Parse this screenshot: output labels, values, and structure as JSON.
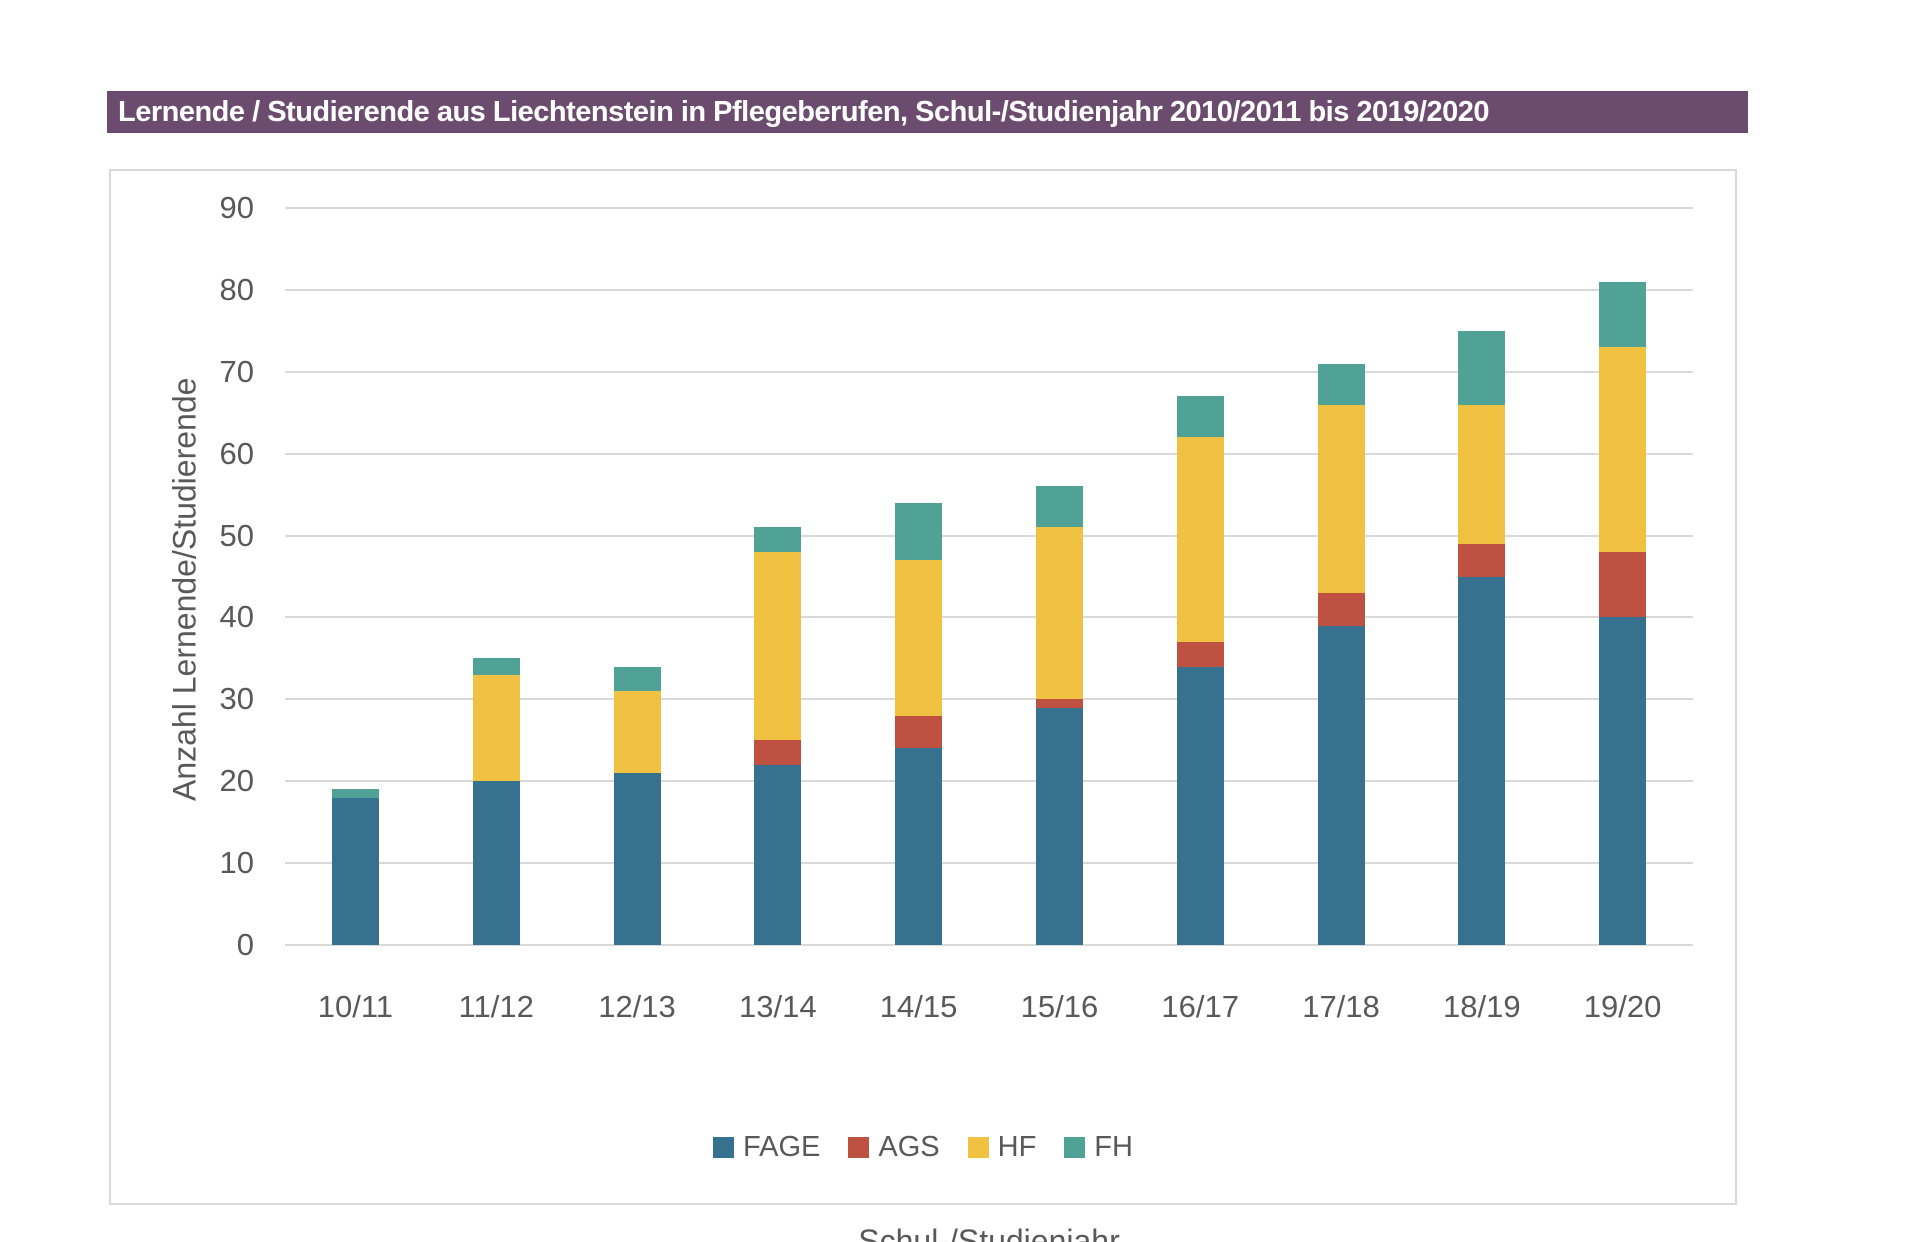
{
  "title": {
    "text": "Lernende / Studierende aus Liechtenstein in Pflegeberufen, Schul-/Studienjahr 2010/2011 bis 2019/2020",
    "bg_color": "#6B4C6E",
    "text_color": "#FFFFFF"
  },
  "colors": {
    "gridline": "#D9D9D9",
    "chart_border": "#D9D9D9",
    "axis_text": "#595959"
  },
  "chart_data": {
    "type": "bar",
    "stacked": true,
    "title": "Lernende / Studierende aus Liechtenstein in Pflegeberufen, Schul-/Studienjahr 2010/2011 bis 2019/2020",
    "categories": [
      "10/11",
      "11/12",
      "12/13",
      "13/14",
      "14/15",
      "15/16",
      "16/17",
      "17/18",
      "18/19",
      "19/20"
    ],
    "series": [
      {
        "name": "FAGE",
        "color": "#36718F",
        "values": [
          18,
          20,
          21,
          22,
          24,
          29,
          34,
          39,
          45,
          40
        ]
      },
      {
        "name": "AGS",
        "color": "#BE5142",
        "values": [
          0,
          0,
          0,
          3,
          4,
          1,
          3,
          4,
          4,
          8
        ]
      },
      {
        "name": "HF",
        "color": "#F1C242",
        "values": [
          0,
          13,
          10,
          23,
          19,
          21,
          25,
          23,
          17,
          25
        ]
      },
      {
        "name": "FH",
        "color": "#4FA295",
        "values": [
          1,
          2,
          3,
          3,
          7,
          5,
          5,
          5,
          9,
          8
        ]
      }
    ],
    "totals": [
      19,
      35,
      34,
      51,
      54,
      56,
      67,
      71,
      75,
      81
    ],
    "xlabel": "Schul-/Studienjahr",
    "ylabel": "Anzahl Lernende/Studierende",
    "ylim": [
      0,
      90
    ],
    "ytick_step": 10,
    "y_ticks": [
      0,
      10,
      20,
      30,
      40,
      50,
      60,
      70,
      80,
      90
    ],
    "grid": true,
    "legend_position": "bottom"
  }
}
